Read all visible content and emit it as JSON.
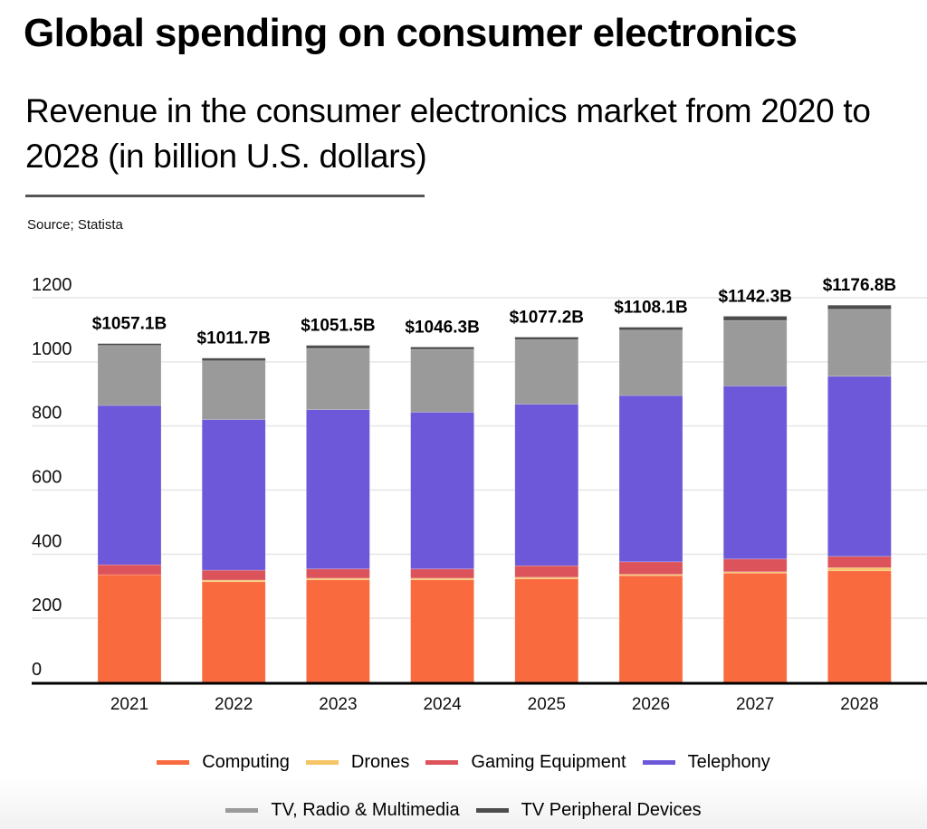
{
  "chart_data": {
    "type": "bar",
    "stacked": true,
    "title": "Global spending on consumer electronics",
    "subtitle": "Revenue in the consumer electronics market from 2020 to 2028 (in billion U.S. dollars)",
    "source": "Source; Statista",
    "xlabel": "",
    "ylabel": "",
    "ylim": [
      0,
      1200
    ],
    "yticks": [
      0,
      200,
      400,
      600,
      800,
      1000,
      1200
    ],
    "grid": true,
    "legend_position": "bottom-center",
    "categories": [
      "2021",
      "2022",
      "2023",
      "2024",
      "2025",
      "2026",
      "2027",
      "2028"
    ],
    "series": [
      {
        "name": "Computing",
        "color": "#F96B3F",
        "values": [
          336,
          314,
          320,
          320,
          323,
          333,
          341,
          348
        ]
      },
      {
        "name": "Drones",
        "color": "#F5C466",
        "values": [
          0,
          5,
          5,
          5,
          5,
          4,
          4,
          10
        ]
      },
      {
        "name": "Gaming Equipment",
        "color": "#DC535B",
        "values": [
          31,
          31,
          29,
          29,
          36,
          39,
          40,
          35
        ]
      },
      {
        "name": "Telephony",
        "color": "#6C58D9",
        "values": [
          497,
          470,
          497,
          489,
          504,
          519,
          540,
          562
        ]
      },
      {
        "name": "TV, Radio & Multimedia",
        "color": "#9A9A9A",
        "values": [
          187,
          183,
          191,
          196,
          201,
          204,
          204,
          209
        ]
      },
      {
        "name": "TV Peripheral Devices",
        "color": "#4D4D4D",
        "values": [
          6.1,
          8.7,
          9.5,
          7.3,
          8.2,
          9.1,
          13.3,
          12.8
        ]
      }
    ],
    "totals": [
      1057.1,
      1011.7,
      1051.5,
      1046.3,
      1077.2,
      1108.1,
      1142.3,
      1176.8
    ],
    "total_labels": [
      "$1057.1B",
      "$1011.7B",
      "$1051.5B",
      "$1046.3B",
      "$1077.2B",
      "$1108.1B",
      "$1142.3B",
      "$1176.8B"
    ]
  },
  "legend": {
    "row1": [
      "Computing",
      "Drones",
      "Gaming Equipment",
      "Telephony"
    ],
    "row2": [
      "TV, Radio & Multimedia",
      "TV Peripheral Devices"
    ]
  }
}
